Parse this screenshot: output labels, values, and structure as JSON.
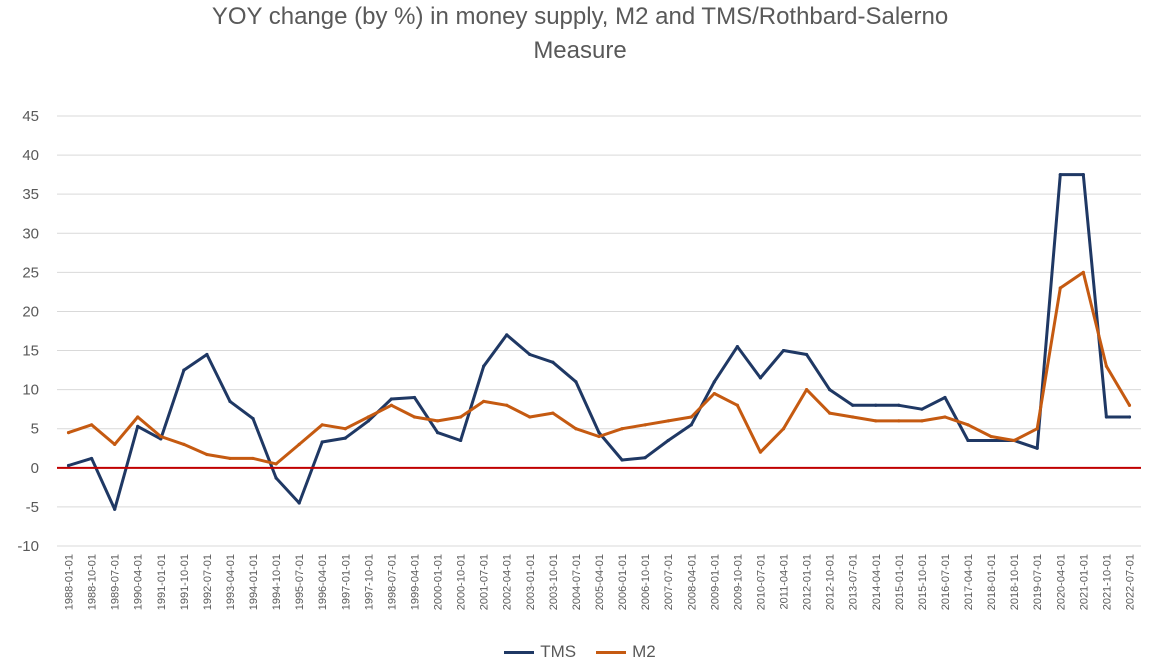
{
  "chart_data": {
    "type": "line",
    "title_line1": "YOY change (by %) in money supply, M2 and TMS/Rothbard-Salerno",
    "title_line2": "Measure",
    "ylim": [
      -10,
      45
    ],
    "yticks": [
      -10,
      -5,
      0,
      5,
      10,
      15,
      20,
      25,
      30,
      35,
      40,
      45
    ],
    "grid": true,
    "legend_position": "bottom",
    "zero_line_color": "#C00000",
    "x": [
      "1988-01-01",
      "1988-10-01",
      "1989-07-01",
      "1990-04-01",
      "1991-01-01",
      "1991-10-01",
      "1992-07-01",
      "1993-04-01",
      "1994-01-01",
      "1994-10-01",
      "1995-07-01",
      "1996-04-01",
      "1997-01-01",
      "1997-10-01",
      "1998-07-01",
      "1999-04-01",
      "2000-01-01",
      "2000-10-01",
      "2001-07-01",
      "2002-04-01",
      "2003-01-01",
      "2003-10-01",
      "2004-07-01",
      "2005-04-01",
      "2006-01-01",
      "2006-10-01",
      "2007-07-01",
      "2008-04-01",
      "2009-01-01",
      "2009-10-01",
      "2010-07-01",
      "2011-04-01",
      "2012-01-01",
      "2012-10-01",
      "2013-07-01",
      "2014-04-01",
      "2015-01-01",
      "2015-10-01",
      "2016-07-01",
      "2017-04-01",
      "2018-01-01",
      "2018-10-01",
      "2019-07-01",
      "2020-04-01",
      "2021-01-01",
      "2021-10-01",
      "2022-07-01"
    ],
    "series": [
      {
        "name": "TMS",
        "color": "#1F3864",
        "values": [
          0.3,
          1.2,
          -5.3,
          5.3,
          3.7,
          12.5,
          14.5,
          8.5,
          6.3,
          -1.3,
          -4.5,
          3.3,
          3.8,
          6.0,
          8.8,
          9.0,
          4.5,
          3.5,
          13.0,
          17.0,
          14.5,
          13.5,
          11.0,
          4.5,
          1.0,
          1.3,
          3.5,
          5.5,
          11.0,
          15.5,
          11.5,
          15.0,
          14.5,
          10.0,
          8.0,
          8.0,
          8.0,
          7.5,
          9.0,
          3.5,
          3.5,
          3.5,
          2.5,
          37.5,
          37.5,
          6.5,
          6.5
        ]
      },
      {
        "name": "M2",
        "color": "#C55A11",
        "values": [
          4.5,
          5.5,
          3.0,
          6.5,
          4.0,
          3.0,
          1.7,
          1.2,
          1.2,
          0.5,
          3.0,
          5.5,
          5.0,
          6.5,
          8.0,
          6.5,
          6.0,
          6.5,
          8.5,
          8.0,
          6.5,
          7.0,
          5.0,
          4.0,
          5.0,
          5.5,
          6.0,
          6.5,
          9.5,
          8.0,
          2.0,
          5.0,
          10.0,
          7.0,
          6.5,
          6.0,
          6.0,
          6.0,
          6.5,
          5.5,
          4.0,
          3.5,
          5.0,
          23.0,
          25.0,
          13.0,
          8.0
        ]
      }
    ]
  }
}
